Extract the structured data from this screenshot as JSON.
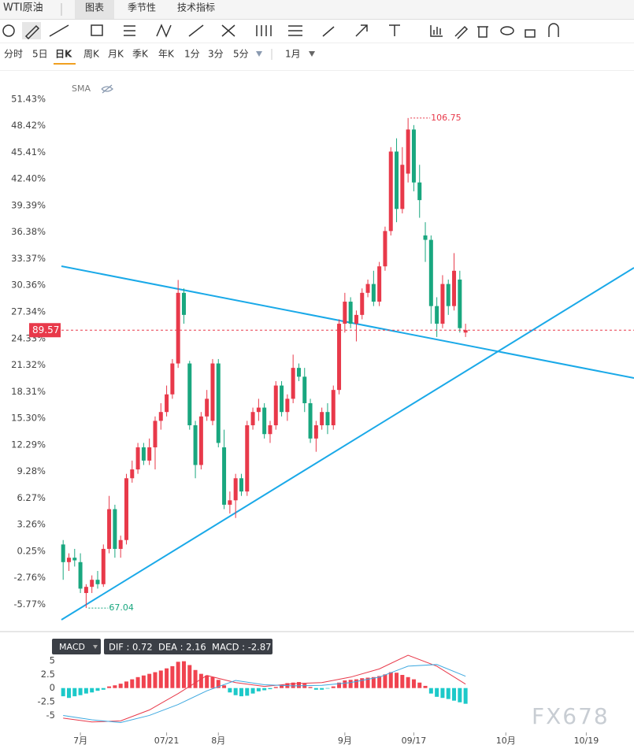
{
  "tabs": [
    "WTI原油",
    "图表",
    "季节性",
    "技术指标"
  ],
  "periods": [
    "分时",
    "5日",
    "日K",
    "周K",
    "月K",
    "季K",
    "年K",
    "1分",
    "3分",
    "5分",
    "1月"
  ],
  "indicator": "SMA",
  "watermark": "FX678",
  "chart_data": [
    {
      "type": "candlestick",
      "xlim": [
        -0.3,
        99.3
      ],
      "ylim": [
        -8.69,
        54.46
      ],
      "yticks": [
        {
          "value": 51.43,
          "label": "51.43%"
        },
        {
          "value": 48.42,
          "label": "48.42%"
        },
        {
          "value": 45.41,
          "label": "45.41%"
        },
        {
          "value": 42.4,
          "label": "42.40%"
        },
        {
          "value": 39.39,
          "label": "39.39%"
        },
        {
          "value": 36.38,
          "label": "36.38%"
        },
        {
          "value": 33.37,
          "label": "33.37%"
        },
        {
          "value": 30.36,
          "label": "30.36%"
        },
        {
          "value": 27.34,
          "label": "27.34%"
        },
        {
          "value": 24.33,
          "label": "24.33%"
        },
        {
          "value": 21.32,
          "label": "21.32%"
        },
        {
          "value": 18.31,
          "label": "18.31%"
        },
        {
          "value": 15.3,
          "label": "15.30%"
        },
        {
          "value": 12.29,
          "label": "12.29%"
        },
        {
          "value": 9.28,
          "label": "9.28%"
        },
        {
          "value": 6.27,
          "label": "6.27%"
        },
        {
          "value": 3.26,
          "label": "3.26%"
        },
        {
          "value": 0.25,
          "label": "0.25%"
        },
        {
          "value": -2.76,
          "label": "-2.76%"
        },
        {
          "value": -5.77,
          "label": "-5.77%"
        }
      ],
      "xticks": [
        {
          "value": 3,
          "label": "7月"
        },
        {
          "value": 18,
          "label": "07/21"
        },
        {
          "value": 27,
          "label": "8月"
        },
        {
          "value": 49,
          "label": "9月"
        },
        {
          "value": 61,
          "label": "09/17"
        },
        {
          "value": 77,
          "label": "10月"
        },
        {
          "value": 91,
          "label": "10/19"
        }
      ],
      "up_color": "#e8394a",
      "down_color": "#19a77f",
      "candles": [
        [
          1,
          1.5,
          -3,
          -1
        ],
        [
          -1,
          0,
          -2,
          -0.5
        ],
        [
          -0.5,
          0.5,
          -1.5,
          -0.8
        ],
        [
          -1,
          0,
          -4.5,
          -4
        ],
        [
          -4.5,
          -3.5,
          -6.2,
          -3.8
        ],
        [
          -3.8,
          -2.5,
          -4.5,
          -3
        ],
        [
          -3,
          -2,
          -4,
          -3.5
        ],
        [
          -3.5,
          1,
          -3.8,
          0.5
        ],
        [
          0.5,
          6.5,
          0,
          5
        ],
        [
          5,
          5.5,
          -0.5,
          0.5
        ],
        [
          0.5,
          2,
          -0.5,
          1.5
        ],
        [
          1.5,
          9,
          1,
          8.5
        ],
        [
          8.5,
          10.5,
          8,
          9.5
        ],
        [
          9.5,
          12.5,
          9,
          12
        ],
        [
          12,
          12.5,
          10,
          10.5
        ],
        [
          10.5,
          13,
          10,
          12
        ],
        [
          12,
          15.5,
          9.5,
          15
        ],
        [
          15,
          17,
          14,
          16
        ],
        [
          16,
          19,
          15.5,
          18
        ],
        [
          18,
          22,
          17.5,
          21.5
        ],
        [
          21.5,
          30.96,
          21,
          29.5
        ],
        [
          29.5,
          30,
          26,
          27
        ],
        [
          21.5,
          21.8,
          14,
          14.5
        ],
        [
          14.5,
          15,
          8.5,
          10
        ],
        [
          10,
          16,
          9.5,
          15.5
        ],
        [
          15.5,
          18.5,
          15,
          17.5
        ],
        [
          15,
          22,
          14.5,
          21.5
        ],
        [
          21.5,
          22,
          12,
          12.5
        ],
        [
          12,
          14,
          5,
          5.5
        ],
        [
          5.5,
          7,
          4.5,
          6
        ],
        [
          6,
          9,
          4,
          8.5
        ],
        [
          8.5,
          9,
          6.5,
          7
        ],
        [
          7,
          15,
          6.5,
          14.5
        ],
        [
          14.5,
          16.5,
          14,
          16
        ],
        [
          16,
          17.5,
          15,
          16.5
        ],
        [
          16.5,
          17,
          13,
          13.5
        ],
        [
          13.5,
          15,
          12.5,
          14.5
        ],
        [
          14.5,
          19.5,
          14,
          19
        ],
        [
          19,
          19.5,
          15.5,
          16
        ],
        [
          16,
          18,
          15,
          17.5
        ],
        [
          17.5,
          22.5,
          17,
          21
        ],
        [
          21,
          21.5,
          19.5,
          20
        ],
        [
          20,
          21,
          16,
          17
        ],
        [
          17,
          17.5,
          12.5,
          13
        ],
        [
          13,
          15,
          11.5,
          14.5
        ],
        [
          14.5,
          16.5,
          14,
          16
        ],
        [
          16,
          17,
          13.5,
          14.5
        ],
        [
          14.5,
          19,
          14,
          18.5
        ],
        [
          18.5,
          26.5,
          18,
          26
        ],
        [
          26,
          29.5,
          25,
          28.5
        ],
        [
          28.5,
          29,
          25.5,
          26
        ],
        [
          26,
          27.5,
          24,
          27
        ],
        [
          27,
          30,
          26.5,
          29.5
        ],
        [
          29.5,
          31,
          29,
          30.5
        ],
        [
          30.5,
          32,
          28,
          28.5
        ],
        [
          28.5,
          33,
          28,
          32.5
        ],
        [
          32.5,
          37,
          32,
          36.5
        ],
        [
          36.5,
          46,
          36,
          45.5
        ],
        [
          45.5,
          47,
          37.5,
          39
        ],
        [
          39,
          46,
          38.5,
          44
        ],
        [
          43,
          49.3,
          42,
          48
        ],
        [
          48,
          48.5,
          41,
          42
        ],
        [
          42,
          44,
          38,
          40
        ],
        [
          36,
          37.5,
          33,
          35.5
        ],
        [
          35.5,
          36,
          26,
          28
        ],
        [
          28,
          29,
          24.5,
          26
        ],
        [
          26,
          31.5,
          25.5,
          30.5
        ],
        [
          30.5,
          31,
          27,
          28
        ],
        [
          28,
          34,
          27.5,
          32
        ],
        [
          31,
          32,
          25,
          25.5
        ],
        [
          25,
          26,
          24.5,
          25.27
        ]
      ],
      "last_price": {
        "value": 25.27,
        "label": "89.57"
      },
      "high_mark": {
        "x": 60,
        "value": 49.3,
        "label": "106.75"
      },
      "low_mark": {
        "x": 4,
        "value": -6.2,
        "label": "67.04"
      },
      "line_color": "#1aa9e8",
      "trend_lines": [
        {
          "x": [
            -0.3,
            99.3
          ],
          "y": [
            32.52,
            19.85
          ]
        },
        {
          "x": [
            -0.3,
            99.3
          ],
          "y": [
            -7.53,
            32.34
          ]
        }
      ]
    },
    {
      "type": "macd",
      "title": "MACD",
      "info": "DIF : 0.72  DEA : 2.16  MACD : -2.87",
      "ylim": [
        -8.1,
        6
      ],
      "yticks": [
        5,
        2.5,
        0,
        -2.5,
        -5
      ],
      "pos_color": "#f0434f",
      "neg_color": "#1cc9c9",
      "histogram": [
        -1.5,
        -1.8,
        -1.5,
        -1.3,
        -1.0,
        -0.8,
        -0.5,
        -0.3,
        0.3,
        0.5,
        0.8,
        1.2,
        1.6,
        2,
        2.3,
        2.6,
        2.9,
        3.2,
        3.6,
        4.0,
        4.8,
        4.9,
        4.2,
        3.3,
        2.6,
        2.3,
        2.0,
        1.5,
        0.5,
        -0.8,
        -1.3,
        -1.5,
        -1.4,
        -1.0,
        -0.6,
        -0.4,
        -0.2,
        0.2,
        0.6,
        0.9,
        1.0,
        1.1,
        0.8,
        0.2,
        -0.3,
        -0.3,
        -0.1,
        0.3,
        1.0,
        1.4,
        1.5,
        1.6,
        1.8,
        1.9,
        2.0,
        2.2,
        2.5,
        2.9,
        2.8,
        2.4,
        2.0,
        1.6,
        1.0,
        0.4,
        -1.0,
        -1.6,
        -1.8,
        -2.0,
        -2.3,
        -2.6,
        -2.87
      ],
      "x": [
        0,
        5,
        10,
        15,
        20,
        25,
        30,
        35,
        40,
        45,
        50,
        55,
        60,
        65,
        70
      ],
      "series": [
        {
          "name": "DIF",
          "color": "#e8394a",
          "values": [
            -5.5,
            -6.2,
            -6.0,
            -4.0,
            -1.0,
            2.3,
            1.0,
            0.3,
            0.8,
            1.0,
            2.0,
            3.5,
            6.0,
            4.0,
            0.72
          ]
        },
        {
          "name": "DEA",
          "color": "#3fa9e0",
          "values": [
            -5.0,
            -5.8,
            -6.3,
            -5.0,
            -3.0,
            -0.5,
            1.4,
            0.6,
            0.4,
            0.5,
            1.0,
            2.0,
            4.0,
            4.3,
            2.16
          ]
        }
      ]
    }
  ]
}
